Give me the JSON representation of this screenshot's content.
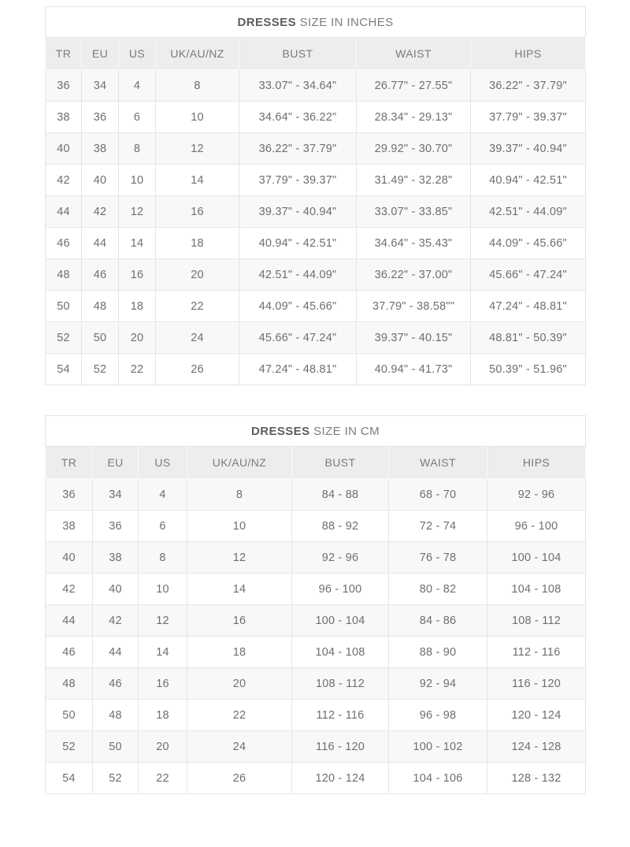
{
  "colors": {
    "page_background": "#ffffff",
    "header_row_background": "#ededed",
    "row_stripe": "#f8f8f8",
    "border": "#e4e4e4",
    "text": "#6e6e6e"
  },
  "chart_data": [
    {
      "type": "table",
      "title": "DRESSES SIZE IN INCHES",
      "title_bold": "DRESSES",
      "title_rest": "SIZE IN INCHES",
      "columns": [
        "TR",
        "EU",
        "US",
        "UK/AU/NZ",
        "BUST",
        "WAIST",
        "HIPS"
      ],
      "rows": [
        [
          "36",
          "34",
          "4",
          "8",
          "33.07\" - 34.64\"",
          "26.77\" - 27.55\"",
          "36.22\" - 37.79\""
        ],
        [
          "38",
          "36",
          "6",
          "10",
          "34.64\" - 36.22\"",
          "28.34\" - 29.13\"",
          "37.79\" - 39.37\""
        ],
        [
          "40",
          "38",
          "8",
          "12",
          "36.22\" - 37.79\"",
          "29.92\" - 30.70\"",
          "39.37\" - 40.94\""
        ],
        [
          "42",
          "40",
          "10",
          "14",
          "37.79\" - 39.37\"",
          "31.49\" - 32.28\"",
          "40.94\" - 42.51\""
        ],
        [
          "44",
          "42",
          "12",
          "16",
          "39.37\" - 40.94\"",
          "33.07\" - 33.85\"",
          "42.51\" - 44.09\""
        ],
        [
          "46",
          "44",
          "14",
          "18",
          "40.94\" - 42.51\"",
          "34.64\" - 35.43\"",
          "44.09\" - 45.66\""
        ],
        [
          "48",
          "46",
          "16",
          "20",
          "42.51\" - 44.09\"",
          "36.22\" - 37.00\"",
          "45.66\" - 47.24\""
        ],
        [
          "50",
          "48",
          "18",
          "22",
          "44.09\" - 45.66\"",
          "37.79\" - 38.58\"\"",
          "47.24\" - 48.81\""
        ],
        [
          "52",
          "50",
          "20",
          "24",
          "45.66\" - 47.24\"",
          "39.37\" - 40.15\"",
          "48.81\" - 50.39\""
        ],
        [
          "54",
          "52",
          "22",
          "26",
          "47.24\" - 48.81\"",
          "40.94\" - 41.73\"",
          "50.39\" - 51.96\""
        ]
      ]
    },
    {
      "type": "table",
      "title": "DRESSES SIZE IN CM",
      "title_bold": "DRESSES",
      "title_rest": "SIZE IN CM",
      "columns": [
        "TR",
        "EU",
        "US",
        "UK/AU/NZ",
        "BUST",
        "WAIST",
        "HIPS"
      ],
      "rows": [
        [
          "36",
          "34",
          "4",
          "8",
          "84 - 88",
          "68 - 70",
          "92 - 96"
        ],
        [
          "38",
          "36",
          "6",
          "10",
          "88 - 92",
          "72 - 74",
          "96 - 100"
        ],
        [
          "40",
          "38",
          "8",
          "12",
          "92 - 96",
          "76 - 78",
          "100 - 104"
        ],
        [
          "42",
          "40",
          "10",
          "14",
          "96 - 100",
          "80 - 82",
          "104 - 108"
        ],
        [
          "44",
          "42",
          "12",
          "16",
          "100 - 104",
          "84 - 86",
          "108 - 112"
        ],
        [
          "46",
          "44",
          "14",
          "18",
          "104 - 108",
          "88 - 90",
          "112 - 116"
        ],
        [
          "48",
          "46",
          "16",
          "20",
          "108 - 112",
          "92 - 94",
          "116 - 120"
        ],
        [
          "50",
          "48",
          "18",
          "22",
          "112 - 116",
          "96 - 98",
          "120 - 124"
        ],
        [
          "52",
          "50",
          "20",
          "24",
          "116 - 120",
          "100 - 102",
          "124 - 128"
        ],
        [
          "54",
          "52",
          "22",
          "26",
          "120 - 124",
          "104 - 106",
          "128 - 132"
        ]
      ]
    }
  ]
}
